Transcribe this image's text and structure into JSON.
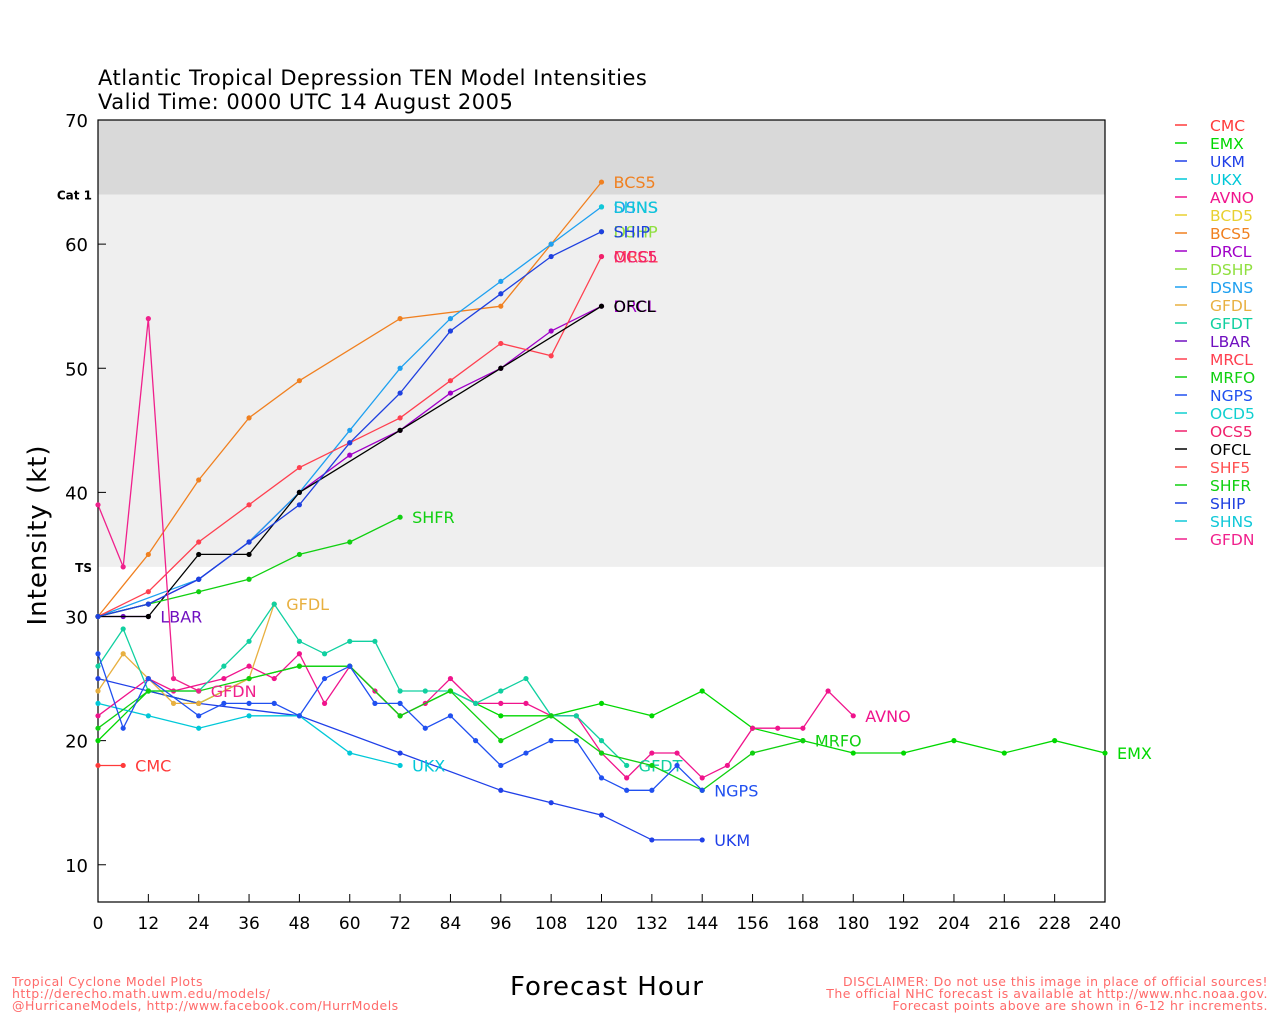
{
  "title": {
    "line1": "Atlantic Tropical Depression TEN Model Intensities",
    "line2": "Valid Time: 0000 UTC 14 August 2005"
  },
  "footer": {
    "left": [
      "Tropical Cyclone Model Plots",
      "http://derecho.math.uwm.edu/models/",
      "@HurricaneModels, http://www.facebook.com/HurrModels"
    ],
    "right": [
      "DISCLAIMER: Do not use this image in place of official sources!",
      "The official NHC forecast is available at http://www.nhc.noaa.gov.",
      "Forecast points above are shown in 6-12 hr increments."
    ]
  },
  "chart_data": {
    "type": "line",
    "title": "Atlantic Tropical Depression TEN Model Intensities",
    "subtitle": "Valid Time: 0000 UTC 14 August 2005",
    "xlabel": "Forecast Hour",
    "ylabel": "Intensity (kt)",
    "xlim": [
      0,
      240
    ],
    "ylim": [
      7,
      70
    ],
    "xticks": [
      0,
      12,
      24,
      36,
      48,
      60,
      72,
      84,
      96,
      108,
      120,
      132,
      144,
      156,
      168,
      180,
      192,
      204,
      216,
      228,
      240
    ],
    "yticks": [
      10,
      20,
      30,
      40,
      50,
      60,
      70
    ],
    "bands": [
      {
        "label": "TS",
        "from": 34,
        "to": 64,
        "color": "#efefef"
      },
      {
        "label": "Cat 1",
        "from": 64,
        "to": 70,
        "color": "#d9d9d9"
      }
    ],
    "legend_position": "right",
    "series": [
      {
        "name": "CMC",
        "color": "#ff3a3a",
        "points": [
          [
            0,
            18
          ],
          [
            6,
            18
          ]
        ],
        "label": "CMC"
      },
      {
        "name": "EMX",
        "color": "#00d800",
        "points": [
          [
            0,
            20
          ],
          [
            12,
            24
          ],
          [
            24,
            23
          ],
          [
            36,
            25
          ],
          [
            48,
            26
          ],
          [
            60,
            26
          ],
          [
            72,
            22
          ],
          [
            84,
            24
          ],
          [
            96,
            22
          ],
          [
            108,
            22
          ],
          [
            120,
            23
          ],
          [
            132,
            22
          ],
          [
            144,
            24
          ],
          [
            156,
            21
          ],
          [
            168,
            20
          ],
          [
            180,
            19
          ],
          [
            192,
            19
          ],
          [
            204,
            20
          ],
          [
            216,
            19
          ],
          [
            228,
            20
          ],
          [
            240,
            19
          ]
        ],
        "label": "EMX"
      },
      {
        "name": "UKM",
        "color": "#2040e8",
        "points": [
          [
            0,
            25
          ],
          [
            24,
            23
          ],
          [
            48,
            22
          ],
          [
            72,
            19
          ],
          [
            96,
            16
          ],
          [
            108,
            15
          ],
          [
            120,
            14
          ],
          [
            132,
            12
          ],
          [
            144,
            12
          ]
        ],
        "label": "UKM"
      },
      {
        "name": "UKX",
        "color": "#00c8d8",
        "points": [
          [
            0,
            23
          ],
          [
            12,
            22
          ],
          [
            24,
            21
          ],
          [
            36,
            22
          ],
          [
            48,
            22
          ],
          [
            60,
            19
          ],
          [
            72,
            18
          ]
        ],
        "label": "UKX"
      },
      {
        "name": "AVNO",
        "color": "#f0148c",
        "points": [
          [
            0,
            22
          ],
          [
            12,
            25
          ],
          [
            18,
            24
          ],
          [
            30,
            25
          ],
          [
            36,
            26
          ],
          [
            42,
            25
          ],
          [
            48,
            27
          ],
          [
            54,
            23
          ],
          [
            60,
            26
          ],
          [
            66,
            24
          ],
          [
            72,
            22
          ],
          [
            78,
            23
          ],
          [
            84,
            25
          ],
          [
            90,
            23
          ],
          [
            96,
            23
          ],
          [
            102,
            23
          ],
          [
            108,
            22
          ],
          [
            114,
            22
          ],
          [
            120,
            19
          ],
          [
            126,
            17
          ],
          [
            132,
            19
          ],
          [
            138,
            19
          ],
          [
            144,
            17
          ],
          [
            150,
            18
          ],
          [
            156,
            21
          ],
          [
            162,
            21
          ],
          [
            168,
            21
          ],
          [
            174,
            24
          ],
          [
            180,
            22
          ]
        ],
        "label": "AVNO"
      },
      {
        "name": "BCD5",
        "color": "#e8d030",
        "points": [],
        "label": ""
      },
      {
        "name": "BCS5",
        "color": "#f08020",
        "points": [
          [
            0,
            30
          ],
          [
            12,
            35
          ],
          [
            24,
            41
          ],
          [
            36,
            46
          ],
          [
            48,
            49
          ],
          [
            72,
            54
          ],
          [
            96,
            55
          ],
          [
            108,
            60
          ],
          [
            120,
            65
          ]
        ],
        "label": "BCS5"
      },
      {
        "name": "DRCL",
        "color": "#a000c8",
        "points": [
          [
            0,
            30
          ],
          [
            12,
            31
          ],
          [
            24,
            33
          ],
          [
            36,
            36
          ],
          [
            48,
            40
          ],
          [
            60,
            43
          ],
          [
            72,
            45
          ],
          [
            84,
            48
          ],
          [
            96,
            50
          ],
          [
            108,
            53
          ],
          [
            120,
            55
          ]
        ],
        "label": "DRCL"
      },
      {
        "name": "DSHP",
        "color": "#90e040",
        "points": [
          [
            120,
            61
          ]
        ],
        "label": "DSHP"
      },
      {
        "name": "DSNS",
        "color": "#1ea0f0",
        "points": [
          [
            0,
            30
          ],
          [
            24,
            33
          ],
          [
            36,
            36
          ],
          [
            48,
            40
          ],
          [
            60,
            45
          ],
          [
            72,
            50
          ],
          [
            84,
            54
          ],
          [
            96,
            57
          ],
          [
            108,
            60
          ],
          [
            120,
            63
          ]
        ],
        "label": "DSNS"
      },
      {
        "name": "GFDL",
        "color": "#e8b040",
        "points": [
          [
            0,
            24
          ],
          [
            6,
            27
          ],
          [
            12,
            25
          ],
          [
            18,
            23
          ],
          [
            24,
            23
          ],
          [
            36,
            25
          ],
          [
            42,
            31
          ]
        ],
        "label": "GFDL"
      },
      {
        "name": "GFDT",
        "color": "#10d0a0",
        "points": [
          [
            0,
            26
          ],
          [
            6,
            29
          ],
          [
            12,
            24
          ],
          [
            24,
            24
          ],
          [
            30,
            26
          ],
          [
            36,
            28
          ],
          [
            42,
            31
          ],
          [
            48,
            28
          ],
          [
            54,
            27
          ],
          [
            60,
            28
          ],
          [
            66,
            28
          ],
          [
            72,
            24
          ],
          [
            78,
            24
          ],
          [
            84,
            24
          ],
          [
            90,
            23
          ],
          [
            96,
            24
          ],
          [
            102,
            25
          ],
          [
            108,
            22
          ],
          [
            114,
            22
          ],
          [
            120,
            20
          ],
          [
            126,
            18
          ]
        ],
        "label": "GFDT"
      },
      {
        "name": "LBAR",
        "color": "#7010c0",
        "points": [
          [
            0,
            30
          ],
          [
            6,
            30
          ],
          [
            12,
            30
          ]
        ],
        "label": "LBAR"
      },
      {
        "name": "MRCL",
        "color": "#ff4050",
        "points": [
          [
            0,
            30
          ],
          [
            12,
            32
          ],
          [
            24,
            36
          ],
          [
            36,
            39
          ],
          [
            48,
            42
          ],
          [
            60,
            44
          ],
          [
            72,
            46
          ],
          [
            84,
            49
          ],
          [
            96,
            52
          ],
          [
            108,
            51
          ],
          [
            120,
            59
          ]
        ],
        "label": "MRCL"
      },
      {
        "name": "MRFO",
        "color": "#10d010",
        "points": [
          [
            0,
            21
          ],
          [
            12,
            24
          ],
          [
            24,
            24
          ],
          [
            36,
            25
          ],
          [
            48,
            26
          ],
          [
            60,
            26
          ],
          [
            72,
            22
          ],
          [
            84,
            24
          ],
          [
            96,
            20
          ],
          [
            108,
            22
          ],
          [
            120,
            19
          ],
          [
            132,
            18
          ],
          [
            144,
            16
          ],
          [
            156,
            19
          ],
          [
            168,
            20
          ]
        ],
        "label": "MRFO"
      },
      {
        "name": "NGPS",
        "color": "#2050f0",
        "points": [
          [
            0,
            27
          ],
          [
            6,
            21
          ],
          [
            12,
            25
          ],
          [
            24,
            22
          ],
          [
            30,
            23
          ],
          [
            36,
            23
          ],
          [
            42,
            23
          ],
          [
            48,
            22
          ],
          [
            54,
            25
          ],
          [
            60,
            26
          ],
          [
            66,
            23
          ],
          [
            72,
            23
          ],
          [
            78,
            21
          ],
          [
            84,
            22
          ],
          [
            90,
            20
          ],
          [
            96,
            18
          ],
          [
            102,
            19
          ],
          [
            108,
            20
          ],
          [
            114,
            20
          ],
          [
            120,
            17
          ],
          [
            126,
            16
          ],
          [
            132,
            16
          ],
          [
            138,
            18
          ],
          [
            144,
            16
          ]
        ],
        "label": "NGPS"
      },
      {
        "name": "OCD5",
        "color": "#10d0d0",
        "points": [],
        "label": ""
      },
      {
        "name": "OCS5",
        "color": "#f0206c",
        "points": [
          [
            120,
            59
          ]
        ],
        "label": "OCS5"
      },
      {
        "name": "OFCL",
        "color": "#000000",
        "points": [
          [
            0,
            30
          ],
          [
            12,
            30
          ],
          [
            24,
            35
          ],
          [
            36,
            35
          ],
          [
            48,
            40
          ],
          [
            72,
            45
          ],
          [
            96,
            50
          ],
          [
            120,
            55
          ]
        ],
        "label": "OFCL"
      },
      {
        "name": "SHF5",
        "color": "#ff5050",
        "points": [],
        "label": ""
      },
      {
        "name": "SHFR",
        "color": "#10d010",
        "points": [
          [
            0,
            30
          ],
          [
            12,
            31
          ],
          [
            24,
            32
          ],
          [
            36,
            33
          ],
          [
            48,
            35
          ],
          [
            60,
            36
          ],
          [
            72,
            38
          ]
        ],
        "label": "SHFR"
      },
      {
        "name": "SHIP",
        "color": "#1e40e0",
        "points": [
          [
            0,
            30
          ],
          [
            12,
            31
          ],
          [
            24,
            33
          ],
          [
            36,
            36
          ],
          [
            48,
            39
          ],
          [
            60,
            44
          ],
          [
            72,
            48
          ],
          [
            84,
            53
          ],
          [
            96,
            56
          ],
          [
            108,
            59
          ],
          [
            120,
            61
          ]
        ],
        "label": "SHIP"
      },
      {
        "name": "SHNS",
        "color": "#10c8d8",
        "points": [
          [
            120,
            63
          ]
        ],
        "label": "SHNS"
      },
      {
        "name": "GFDN",
        "color": "#f0208c",
        "points": [
          [
            0,
            39
          ],
          [
            6,
            34
          ],
          [
            12,
            54
          ],
          [
            18,
            25
          ],
          [
            24,
            24
          ]
        ],
        "label": "GFDN"
      }
    ]
  }
}
